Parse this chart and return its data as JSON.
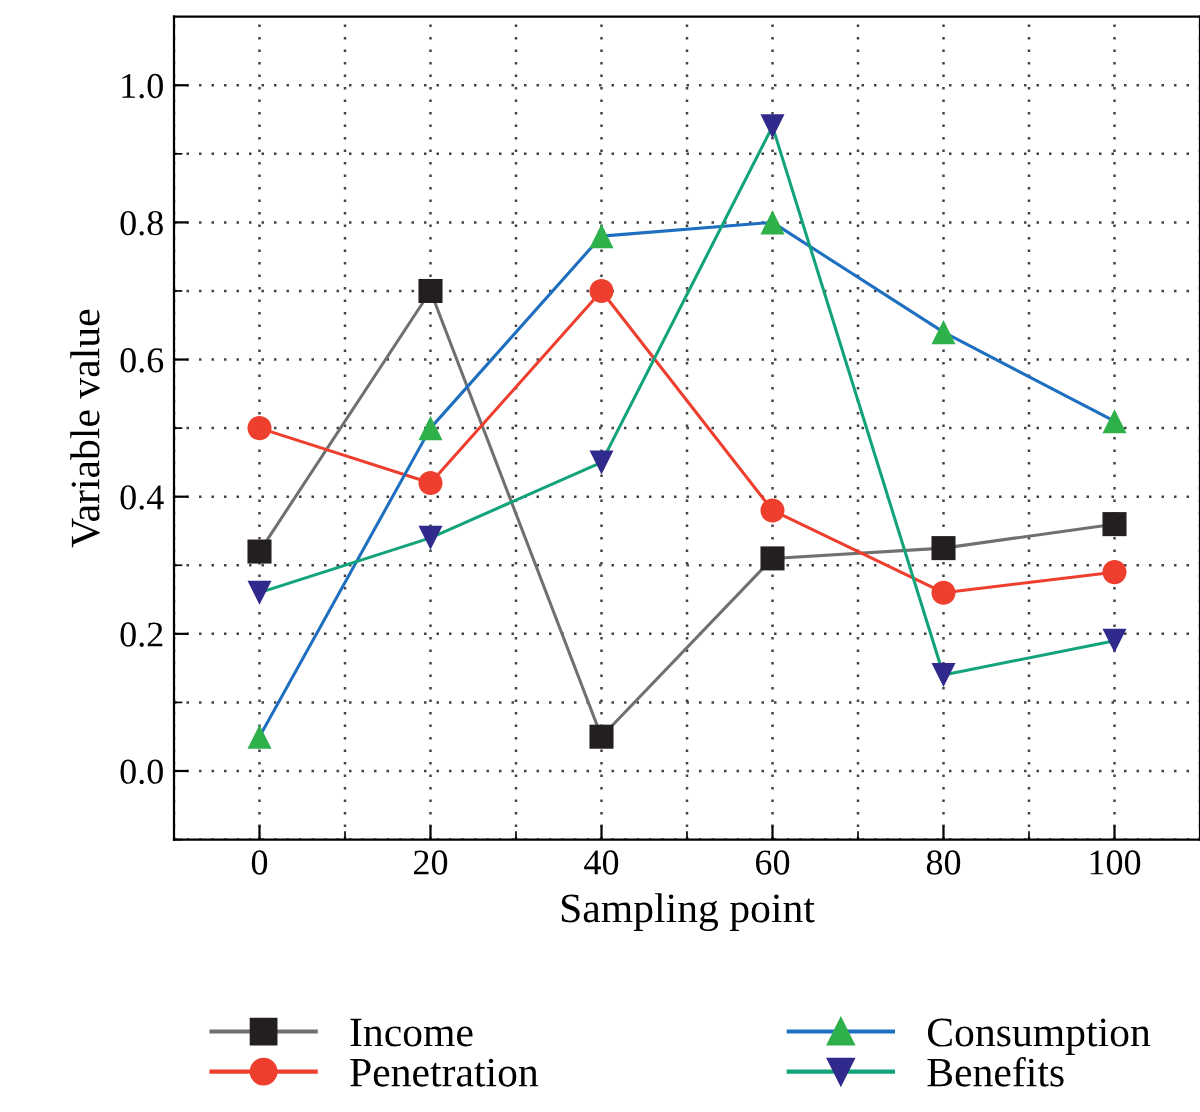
{
  "chart_data": {
    "type": "line",
    "xlabel": "Sampling point",
    "ylabel": "Variable value",
    "x": [
      0,
      20,
      40,
      60,
      80,
      100
    ],
    "series": [
      {
        "name": "Income",
        "color": "#707070",
        "colors": [
          "#231f20",
          "#231f20",
          "#231f20",
          "#231f20",
          "#231f20",
          "#231f20"
        ],
        "marker": "square",
        "values": [
          0.32,
          0.7,
          0.05,
          0.31,
          0.325,
          0.36
        ]
      },
      {
        "name": "Penetration",
        "color": "#ee3e2e",
        "colors": [
          "#ee3e2e",
          "#ee3e2e",
          "#ee3e2e",
          "#ee3e2e",
          "#ee3e2e",
          "#ee3e2e"
        ],
        "marker": "circle",
        "values": [
          0.5,
          0.42,
          0.7,
          0.38,
          0.26,
          0.29
        ]
      },
      {
        "name": "Consumption",
        "color": "#1f6fc0",
        "colors": [
          "#2eb04b",
          "#2eb04b",
          "#2eb04b",
          "#2eb04b",
          "#2eb04b",
          "#2eb04b"
        ],
        "marker": "triangle",
        "values": [
          0.05,
          0.5,
          0.78,
          0.8,
          0.64,
          0.51
        ]
      },
      {
        "name": "Benefits",
        "color": "#12a37a",
        "colors": [
          "#302a8c",
          "#302a8c",
          "#302a8c",
          "#302a8c",
          "#302a8c",
          "#302a8c"
        ],
        "marker": "triangle_down",
        "values": [
          0.26,
          0.34,
          0.45,
          0.94,
          0.14,
          0.19
        ]
      }
    ],
    "xlim": [
      -10,
      110
    ],
    "xticks": [
      0,
      20,
      40,
      60,
      80,
      100
    ],
    "ylim": [
      -0.1,
      1.1
    ],
    "yticks": [
      {
        "value": 0,
        "label": "0.0"
      },
      0.2,
      0.4,
      0.6,
      0.8,
      {
        "value": 1,
        "label": "1.0"
      }
    ],
    "grid": true,
    "legend": "bottom",
    "line_style": "solid"
  }
}
